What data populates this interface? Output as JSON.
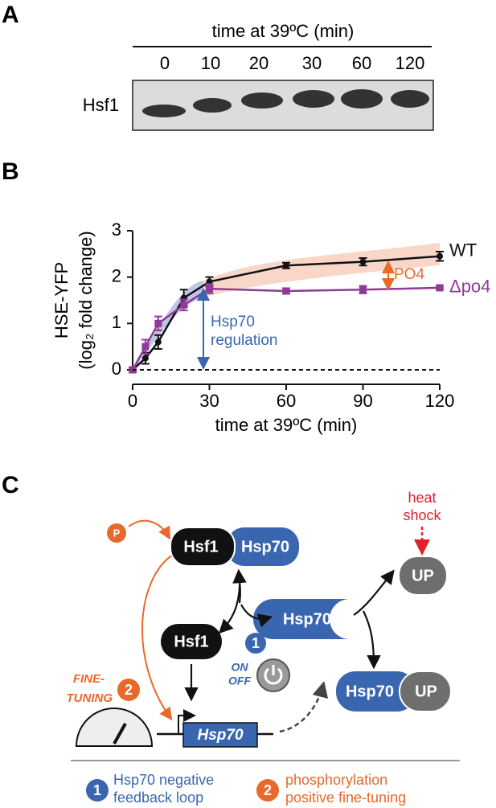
{
  "panel_a": {
    "label": "A",
    "title": "time at 39ºC (min)",
    "lanes": [
      "0",
      "10",
      "20",
      "30",
      "60",
      "120"
    ],
    "row_label": "Hsf1"
  },
  "chart_data": {
    "label": "B",
    "type": "line",
    "ylabel": [
      "HSE-YFP",
      "(log₂ fold change)"
    ],
    "xlabel": "time at 39ºC (min)",
    "xlim": [
      0,
      120
    ],
    "xticks": [
      0,
      30,
      60,
      90,
      120
    ],
    "ylim": [
      0,
      3
    ],
    "yticks": [
      0,
      1,
      2,
      3
    ],
    "series": [
      {
        "name": "WT",
        "color": "#111111",
        "x": [
          0,
          5,
          10,
          20,
          30,
          60,
          90,
          120
        ],
        "values": [
          0,
          0.25,
          0.6,
          1.55,
          1.9,
          2.25,
          2.33,
          2.45
        ],
        "errors": [
          0.05,
          0.12,
          0.15,
          0.18,
          0.1,
          0.06,
          0.08,
          0.1
        ]
      },
      {
        "name": "Δpo4",
        "color": "#8e3a96",
        "x": [
          0,
          5,
          10,
          20,
          30,
          60,
          90,
          120
        ],
        "values": [
          0,
          0.5,
          1.0,
          1.4,
          1.75,
          1.7,
          1.73,
          1.77
        ],
        "errors": [
          0.05,
          0.15,
          0.15,
          0.12,
          0.1,
          0.06,
          0.08,
          0.03
        ]
      }
    ],
    "annotations": [
      [
        "PO4"
      ],
      [
        "Hsp70",
        "regulation"
      ]
    ]
  },
  "panel_c": {
    "label": "C",
    "p": "P",
    "heat_shock": [
      "heat",
      "shock"
    ],
    "complex": [
      "Hsf1",
      "Hsp70"
    ],
    "up": "UP",
    "hsp70": "Hsp70",
    "hsf1": "Hsf1",
    "switch": [
      "ON",
      "OFF"
    ],
    "bound": [
      "Hsp70",
      "UP"
    ],
    "fine_tuning": [
      "FINE-",
      "TUNING"
    ],
    "gene": "Hsp70",
    "markers": [
      "1",
      "2"
    ],
    "legend": [
      {
        "number": "1",
        "lines": [
          "Hsp70 negative",
          "feedback loop"
        ]
      },
      {
        "number": "2",
        "lines": [
          "phosphorylation",
          "positive fine-tuning"
        ]
      }
    ]
  }
}
